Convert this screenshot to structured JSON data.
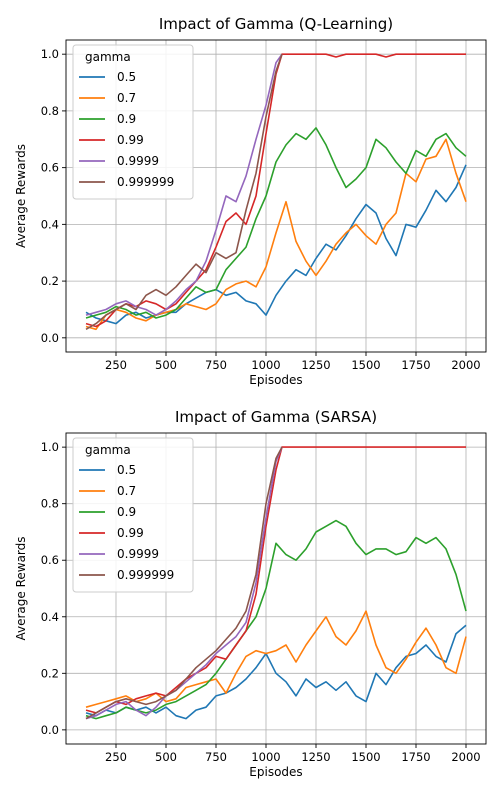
{
  "figure": {
    "background": "#ffffff",
    "grid": true
  },
  "series_colors": [
    "#1f77b4",
    "#ff7f0e",
    "#2ca02c",
    "#d62728",
    "#9467bd",
    "#8c564b"
  ],
  "chart_data": [
    {
      "type": "line",
      "title": "Impact of Gamma (Q-Learning)",
      "xlabel": "Episodes",
      "ylabel": "Average Rewards",
      "xlim": [
        0,
        2100
      ],
      "ylim": [
        -0.05,
        1.05
      ],
      "xticks": [
        250,
        500,
        750,
        1000,
        1250,
        1500,
        1750,
        2000
      ],
      "yticks": [
        0.0,
        0.2,
        0.4,
        0.6,
        0.8,
        1.0
      ],
      "legend": {
        "title": "gamma",
        "placement": "upper-left"
      },
      "series": [
        {
          "name": "0.5",
          "color": "#1f77b4",
          "x": [
            100,
            150,
            200,
            250,
            300,
            350,
            400,
            450,
            500,
            550,
            600,
            650,
            700,
            750,
            800,
            850,
            900,
            950,
            1000,
            1050,
            1100,
            1150,
            1200,
            1250,
            1300,
            1350,
            1400,
            1450,
            1500,
            1550,
            1600,
            1650,
            1700,
            1750,
            1800,
            1850,
            1900,
            1950,
            2000
          ],
          "y": [
            0.09,
            0.07,
            0.06,
            0.05,
            0.08,
            0.09,
            0.07,
            0.08,
            0.09,
            0.09,
            0.12,
            0.14,
            0.16,
            0.17,
            0.15,
            0.16,
            0.13,
            0.12,
            0.08,
            0.15,
            0.2,
            0.24,
            0.22,
            0.28,
            0.33,
            0.31,
            0.36,
            0.42,
            0.47,
            0.44,
            0.35,
            0.29,
            0.4,
            0.39,
            0.45,
            0.52,
            0.48,
            0.53,
            0.61
          ]
        },
        {
          "name": "0.7",
          "color": "#ff7f0e",
          "x": [
            100,
            150,
            200,
            250,
            300,
            350,
            400,
            450,
            500,
            550,
            600,
            650,
            700,
            750,
            800,
            850,
            900,
            950,
            1000,
            1050,
            1100,
            1150,
            1200,
            1250,
            1300,
            1350,
            1400,
            1450,
            1500,
            1550,
            1600,
            1650,
            1700,
            1750,
            1800,
            1850,
            1900,
            1950,
            2000
          ],
          "y": [
            0.04,
            0.03,
            0.08,
            0.1,
            0.09,
            0.07,
            0.06,
            0.08,
            0.09,
            0.1,
            0.12,
            0.11,
            0.1,
            0.12,
            0.17,
            0.19,
            0.2,
            0.18,
            0.25,
            0.37,
            0.48,
            0.34,
            0.27,
            0.22,
            0.27,
            0.33,
            0.37,
            0.4,
            0.36,
            0.33,
            0.4,
            0.44,
            0.58,
            0.55,
            0.63,
            0.64,
            0.7,
            0.58,
            0.48
          ]
        },
        {
          "name": "0.9",
          "color": "#2ca02c",
          "x": [
            100,
            150,
            200,
            250,
            300,
            350,
            400,
            450,
            500,
            550,
            600,
            650,
            700,
            750,
            800,
            850,
            900,
            950,
            1000,
            1050,
            1100,
            1150,
            1200,
            1250,
            1300,
            1350,
            1400,
            1450,
            1500,
            1550,
            1600,
            1650,
            1700,
            1750,
            1800,
            1850,
            1900,
            1950,
            2000
          ],
          "y": [
            0.07,
            0.08,
            0.09,
            0.11,
            0.1,
            0.08,
            0.09,
            0.07,
            0.08,
            0.1,
            0.14,
            0.18,
            0.16,
            0.17,
            0.24,
            0.28,
            0.32,
            0.42,
            0.5,
            0.62,
            0.68,
            0.72,
            0.7,
            0.74,
            0.68,
            0.6,
            0.53,
            0.56,
            0.6,
            0.7,
            0.67,
            0.62,
            0.58,
            0.66,
            0.64,
            0.7,
            0.72,
            0.67,
            0.64
          ]
        },
        {
          "name": "0.99",
          "color": "#d62728",
          "x": [
            100,
            150,
            200,
            250,
            300,
            350,
            400,
            450,
            500,
            550,
            600,
            650,
            700,
            750,
            800,
            850,
            900,
            950,
            1000,
            1050,
            1080,
            1100,
            1150,
            1200,
            1300,
            1350,
            1400,
            1450,
            1500,
            1550,
            1600,
            1650,
            1700,
            1800,
            1900,
            2000
          ],
          "y": [
            0.05,
            0.04,
            0.06,
            0.1,
            0.12,
            0.11,
            0.13,
            0.12,
            0.1,
            0.12,
            0.16,
            0.2,
            0.24,
            0.32,
            0.41,
            0.44,
            0.4,
            0.5,
            0.72,
            0.93,
            1.0,
            1.0,
            1.0,
            1.0,
            1.0,
            0.99,
            1.0,
            1.0,
            1.0,
            1.0,
            0.99,
            1.0,
            1.0,
            1.0,
            1.0,
            1.0
          ]
        },
        {
          "name": "0.9999",
          "color": "#9467bd",
          "x": [
            100,
            150,
            200,
            250,
            300,
            350,
            400,
            450,
            500,
            550,
            600,
            650,
            700,
            750,
            800,
            850,
            900,
            950,
            1000,
            1050,
            1080
          ],
          "y": [
            0.08,
            0.09,
            0.1,
            0.12,
            0.13,
            0.11,
            0.1,
            0.08,
            0.1,
            0.13,
            0.17,
            0.2,
            0.27,
            0.38,
            0.5,
            0.48,
            0.57,
            0.7,
            0.82,
            0.97,
            1.0
          ]
        },
        {
          "name": "0.999999",
          "color": "#8c564b",
          "x": [
            100,
            150,
            200,
            250,
            300,
            350,
            400,
            450,
            500,
            550,
            600,
            650,
            700,
            750,
            800,
            850,
            900,
            950,
            1000,
            1050,
            1080
          ],
          "y": [
            0.03,
            0.05,
            0.08,
            0.1,
            0.12,
            0.1,
            0.15,
            0.17,
            0.15,
            0.18,
            0.22,
            0.26,
            0.23,
            0.3,
            0.28,
            0.3,
            0.45,
            0.58,
            0.78,
            0.94,
            1.0
          ]
        }
      ]
    },
    {
      "type": "line",
      "title": "Impact of Gamma (SARSA)",
      "xlabel": "Episodes",
      "ylabel": "Average Rewards",
      "xlim": [
        0,
        2100
      ],
      "ylim": [
        -0.05,
        1.05
      ],
      "xticks": [
        250,
        500,
        750,
        1000,
        1250,
        1500,
        1750,
        2000
      ],
      "yticks": [
        0.0,
        0.2,
        0.4,
        0.6,
        0.8,
        1.0
      ],
      "legend": {
        "title": "gamma",
        "placement": "upper-left"
      },
      "series": [
        {
          "name": "0.5",
          "color": "#1f77b4",
          "x": [
            100,
            150,
            200,
            250,
            300,
            350,
            400,
            450,
            500,
            550,
            600,
            650,
            700,
            750,
            800,
            850,
            900,
            950,
            1000,
            1050,
            1100,
            1150,
            1200,
            1250,
            1300,
            1350,
            1400,
            1450,
            1500,
            1550,
            1600,
            1650,
            1700,
            1750,
            1800,
            1850,
            1900,
            1950,
            2000
          ],
          "y": [
            0.06,
            0.05,
            0.07,
            0.06,
            0.08,
            0.07,
            0.08,
            0.06,
            0.08,
            0.05,
            0.04,
            0.07,
            0.08,
            0.12,
            0.13,
            0.15,
            0.18,
            0.22,
            0.27,
            0.2,
            0.17,
            0.12,
            0.18,
            0.15,
            0.17,
            0.14,
            0.17,
            0.12,
            0.1,
            0.2,
            0.16,
            0.22,
            0.26,
            0.27,
            0.3,
            0.26,
            0.24,
            0.34,
            0.37
          ]
        },
        {
          "name": "0.7",
          "color": "#ff7f0e",
          "x": [
            100,
            150,
            200,
            250,
            300,
            350,
            400,
            450,
            500,
            550,
            600,
            650,
            700,
            750,
            800,
            850,
            900,
            950,
            1000,
            1050,
            1100,
            1150,
            1200,
            1250,
            1300,
            1350,
            1400,
            1450,
            1500,
            1550,
            1600,
            1650,
            1700,
            1750,
            1800,
            1850,
            1900,
            1950,
            2000
          ],
          "y": [
            0.08,
            0.09,
            0.1,
            0.11,
            0.12,
            0.1,
            0.11,
            0.13,
            0.1,
            0.11,
            0.15,
            0.16,
            0.17,
            0.18,
            0.13,
            0.2,
            0.26,
            0.28,
            0.27,
            0.28,
            0.3,
            0.24,
            0.3,
            0.35,
            0.4,
            0.33,
            0.3,
            0.35,
            0.42,
            0.3,
            0.22,
            0.2,
            0.25,
            0.31,
            0.36,
            0.3,
            0.22,
            0.2,
            0.33
          ]
        },
        {
          "name": "0.9",
          "color": "#2ca02c",
          "x": [
            100,
            150,
            200,
            250,
            300,
            350,
            400,
            450,
            500,
            550,
            600,
            650,
            700,
            750,
            800,
            850,
            900,
            950,
            1000,
            1050,
            1100,
            1150,
            1200,
            1250,
            1300,
            1350,
            1400,
            1450,
            1500,
            1550,
            1600,
            1650,
            1700,
            1750,
            1800,
            1850,
            1900,
            1950,
            2000
          ],
          "y": [
            0.05,
            0.04,
            0.05,
            0.06,
            0.08,
            0.07,
            0.06,
            0.07,
            0.09,
            0.1,
            0.12,
            0.14,
            0.16,
            0.2,
            0.25,
            0.3,
            0.35,
            0.4,
            0.5,
            0.66,
            0.62,
            0.6,
            0.64,
            0.7,
            0.72,
            0.74,
            0.72,
            0.66,
            0.62,
            0.64,
            0.64,
            0.62,
            0.63,
            0.68,
            0.66,
            0.68,
            0.64,
            0.55,
            0.42
          ]
        },
        {
          "name": "0.99",
          "color": "#d62728",
          "x": [
            100,
            150,
            200,
            250,
            300,
            350,
            400,
            450,
            500,
            550,
            600,
            650,
            700,
            750,
            800,
            850,
            900,
            950,
            1000,
            1050,
            1080,
            1100,
            1200,
            1300,
            1400,
            1500,
            1600,
            1700,
            1800,
            1900,
            2000
          ],
          "y": [
            0.07,
            0.06,
            0.08,
            0.1,
            0.09,
            0.11,
            0.12,
            0.13,
            0.12,
            0.15,
            0.18,
            0.2,
            0.22,
            0.26,
            0.25,
            0.3,
            0.35,
            0.48,
            0.72,
            0.92,
            1.0,
            1.0,
            1.0,
            1.0,
            1.0,
            1.0,
            1.0,
            1.0,
            1.0,
            1.0,
            1.0
          ]
        },
        {
          "name": "0.9999",
          "color": "#9467bd",
          "x": [
            100,
            150,
            200,
            250,
            300,
            350,
            400,
            450,
            500,
            550,
            600,
            650,
            700,
            750,
            800,
            850,
            900,
            950,
            1000,
            1050,
            1080
          ],
          "y": [
            0.04,
            0.05,
            0.07,
            0.09,
            0.1,
            0.07,
            0.05,
            0.08,
            0.12,
            0.14,
            0.17,
            0.2,
            0.23,
            0.27,
            0.3,
            0.33,
            0.38,
            0.52,
            0.75,
            0.95,
            1.0
          ]
        },
        {
          "name": "0.999999",
          "color": "#8c564b",
          "x": [
            100,
            150,
            200,
            250,
            300,
            350,
            400,
            450,
            500,
            550,
            600,
            650,
            700,
            750,
            800,
            850,
            900,
            950,
            1000,
            1050,
            1080
          ],
          "y": [
            0.04,
            0.06,
            0.08,
            0.1,
            0.11,
            0.1,
            0.09,
            0.1,
            0.12,
            0.14,
            0.18,
            0.22,
            0.25,
            0.28,
            0.32,
            0.36,
            0.42,
            0.55,
            0.8,
            0.96,
            1.0
          ]
        }
      ]
    }
  ]
}
